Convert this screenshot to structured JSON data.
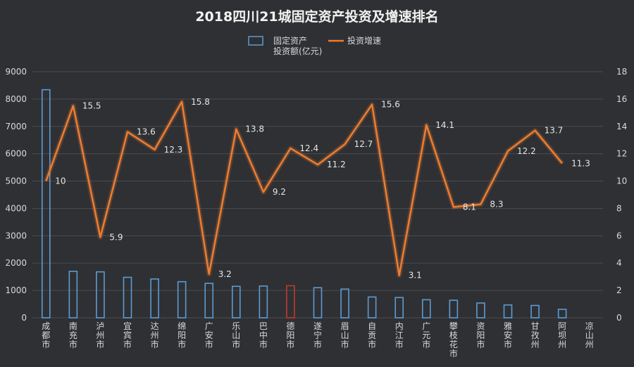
{
  "chart_data": {
    "type": "bar+line",
    "title": "2018四川21城固定资产投资及增速排名",
    "categories": [
      "成都市",
      "南充市",
      "泸州市",
      "宜宾市",
      "达州市",
      "绵阳市",
      "广安市",
      "乐山市",
      "巴中市",
      "德阳市",
      "遂宁市",
      "眉山市",
      "自贡市",
      "内江市",
      "广元市",
      "攀枝花市",
      "资阳市",
      "雅安市",
      "甘孜州",
      "阿坝州",
      "凉山州"
    ],
    "series": [
      {
        "name": "固定资产投资额(亿元)",
        "type": "bar",
        "axis": "left",
        "color": "#5b9bd5",
        "values": [
          8341,
          1700,
          1680,
          1480,
          1420,
          1320,
          1260,
          1150,
          1160,
          1170,
          1100,
          1050,
          760,
          740,
          660,
          640,
          540,
          470,
          450,
          310,
          0
        ]
      },
      {
        "name": "投资增速",
        "type": "line",
        "axis": "right",
        "color": "#ed7d31",
        "values": [
          10,
          15.5,
          5.9,
          13.6,
          12.3,
          15.8,
          3.2,
          13.8,
          9.2,
          12.4,
          11.2,
          12.7,
          15.6,
          3.1,
          14.1,
          8.1,
          8.3,
          12.2,
          13.7,
          11.3,
          null
        ],
        "data_labels": [
          "10",
          "15.5",
          "5.9",
          "13.6",
          "12.3",
          "15.8",
          "3.2",
          "13.8",
          "9.2",
          "12.4",
          "11.2",
          "12.7",
          "15.6",
          "3.1",
          "14.1",
          "8.1",
          "8.3",
          "12.2",
          "13.7",
          "11.3",
          ""
        ]
      }
    ],
    "legend": [
      "固定资产投资额(亿元)",
      "投资增速"
    ],
    "legend_position": "top",
    "ylim_left": [
      0,
      9000
    ],
    "yticks_left": [
      "0",
      "1000",
      "2000",
      "3000",
      "4000",
      "5000",
      "6000",
      "7000",
      "8000",
      "9000"
    ],
    "ylim_right": [
      0,
      18
    ],
    "yticks_right": [
      "0",
      "2",
      "4",
      "6",
      "8",
      "10",
      "12",
      "14",
      "16",
      "18"
    ],
    "highlight_category": "德阳市",
    "highlight_color": "#c0392b",
    "grid": true
  },
  "legend_text": {
    "bar_line1": "固定资产",
    "bar_line2": "投资额(亿元)",
    "line": "投资增速"
  }
}
